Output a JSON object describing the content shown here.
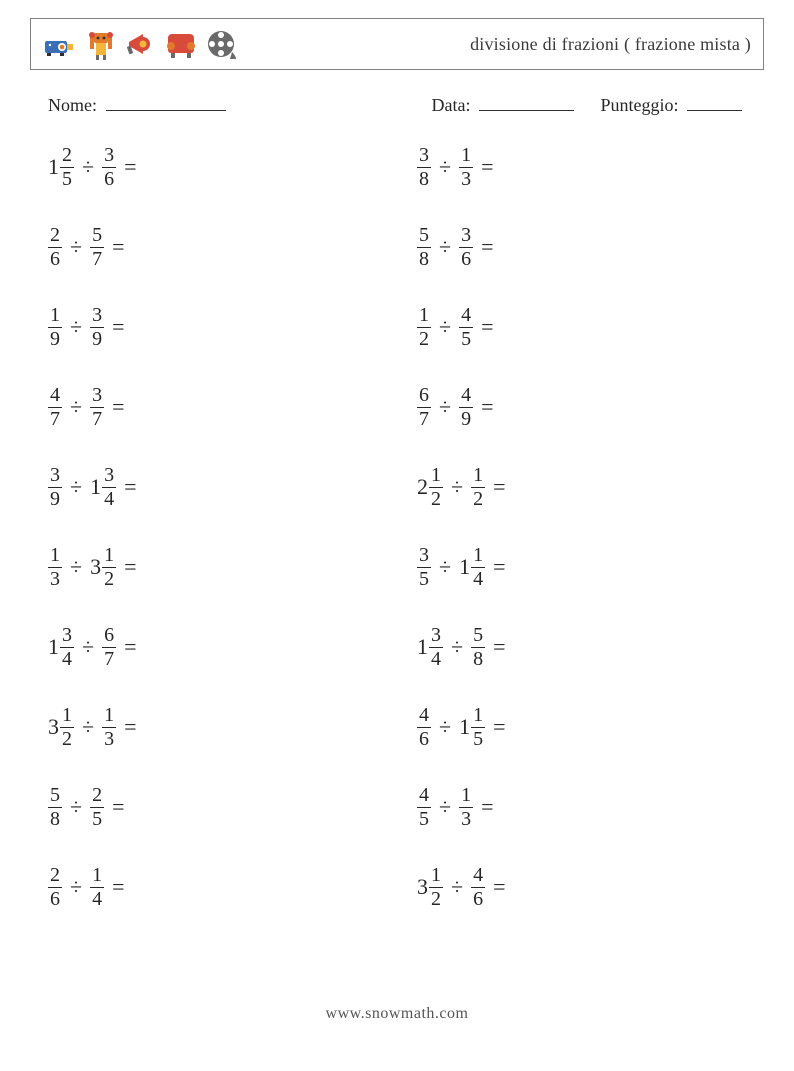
{
  "header": {
    "title": "divisione di frazioni ( frazione mista )"
  },
  "meta": {
    "name_label": "Nome:",
    "name_blank_width": 120,
    "date_label": "Data:",
    "date_blank_width": 95,
    "score_label": "Punteggio:",
    "score_blank_width": 55
  },
  "icons": {
    "colors": {
      "blue": "#3a6fb7",
      "orange": "#e27a2b",
      "red": "#d84b3a",
      "gray": "#6a6a6a",
      "dark": "#2f2f2f",
      "yellow": "#f2b63d"
    }
  },
  "operator": "÷",
  "equals": "=",
  "problems_left": [
    {
      "a": {
        "w": "1",
        "n": "2",
        "d": "5"
      },
      "b": {
        "n": "3",
        "d": "6"
      }
    },
    {
      "a": {
        "n": "2",
        "d": "6"
      },
      "b": {
        "n": "5",
        "d": "7"
      }
    },
    {
      "a": {
        "n": "1",
        "d": "9"
      },
      "b": {
        "n": "3",
        "d": "9"
      }
    },
    {
      "a": {
        "n": "4",
        "d": "7"
      },
      "b": {
        "n": "3",
        "d": "7"
      }
    },
    {
      "a": {
        "n": "3",
        "d": "9"
      },
      "b": {
        "w": "1",
        "n": "3",
        "d": "4"
      }
    },
    {
      "a": {
        "n": "1",
        "d": "3"
      },
      "b": {
        "w": "3",
        "n": "1",
        "d": "2"
      }
    },
    {
      "a": {
        "w": "1",
        "n": "3",
        "d": "4"
      },
      "b": {
        "n": "6",
        "d": "7"
      }
    },
    {
      "a": {
        "w": "3",
        "n": "1",
        "d": "2"
      },
      "b": {
        "n": "1",
        "d": "3"
      }
    },
    {
      "a": {
        "n": "5",
        "d": "8"
      },
      "b": {
        "n": "2",
        "d": "5"
      }
    },
    {
      "a": {
        "n": "2",
        "d": "6"
      },
      "b": {
        "n": "1",
        "d": "4"
      }
    }
  ],
  "problems_right": [
    {
      "a": {
        "n": "3",
        "d": "8"
      },
      "b": {
        "n": "1",
        "d": "3"
      }
    },
    {
      "a": {
        "n": "5",
        "d": "8"
      },
      "b": {
        "n": "3",
        "d": "6"
      }
    },
    {
      "a": {
        "n": "1",
        "d": "2"
      },
      "b": {
        "n": "4",
        "d": "5"
      }
    },
    {
      "a": {
        "n": "6",
        "d": "7"
      },
      "b": {
        "n": "4",
        "d": "9"
      }
    },
    {
      "a": {
        "w": "2",
        "n": "1",
        "d": "2"
      },
      "b": {
        "n": "1",
        "d": "2"
      }
    },
    {
      "a": {
        "n": "3",
        "d": "5"
      },
      "b": {
        "w": "1",
        "n": "1",
        "d": "4"
      }
    },
    {
      "a": {
        "w": "1",
        "n": "3",
        "d": "4"
      },
      "b": {
        "n": "5",
        "d": "8"
      }
    },
    {
      "a": {
        "n": "4",
        "d": "6"
      },
      "b": {
        "w": "1",
        "n": "1",
        "d": "5"
      }
    },
    {
      "a": {
        "n": "4",
        "d": "5"
      },
      "b": {
        "n": "1",
        "d": "3"
      }
    },
    {
      "a": {
        "w": "3",
        "n": "1",
        "d": "2"
      },
      "b": {
        "n": "4",
        "d": "6"
      }
    }
  ],
  "footer": {
    "url": "www.snowmath.com"
  }
}
